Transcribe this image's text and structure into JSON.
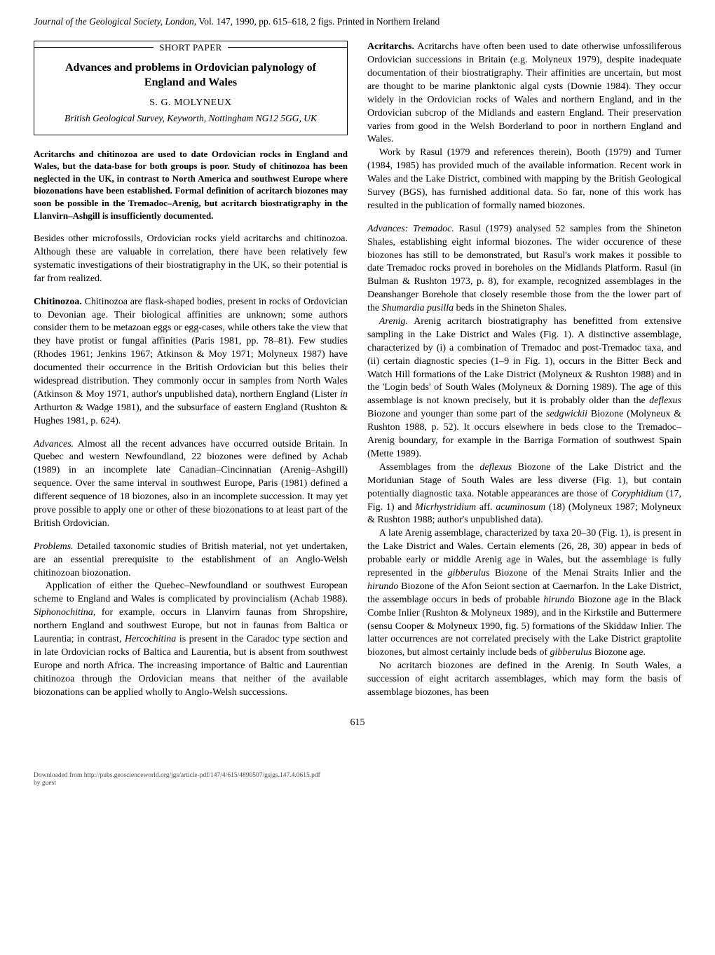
{
  "header": {
    "journal_italic_prefix": "Journal of the Geological Society, London,",
    "rest": " Vol. 147, 1990, pp. 615–618, 2 figs. Printed in Northern Ireland"
  },
  "title_box": {
    "short_paper": "SHORT PAPER",
    "title": "Advances and problems in Ordovician palynology of England and Wales",
    "author": "S. G. MOLYNEUX",
    "affiliation": "British Geological Survey, Keyworth, Nottingham NG12 5GG, UK"
  },
  "abstract": "Acritarchs and chitinozoa are used to date Ordovician rocks in England and Wales, but the data-base for both groups is poor. Study of chitinozoa has been neglected in the UK, in contrast to North America and southwest Europe where biozonations have been established. Formal definition of acritarch biozones may soon be possible in the Tremadoc–Arenig, but acritarch biostratigraphy in the Llanvirn–Ashgill is insufficiently documented.",
  "left": [
    {
      "type": "p",
      "text": "Besides other microfossils, Ordovician rocks yield acritarchs and chitinozoa. Although these are valuable in correlation, there have been relatively few systematic investigations of their biostratigraphy in the UK, so their potential is far from realized."
    },
    {
      "type": "runin",
      "label": "Chitinozoa.",
      "style": "bold",
      "text": " Chitinozoa are flask-shaped bodies, present in rocks of Ordovician to Devonian age. Their biological affinities are unknown; some authors consider them to be metazoan eggs or egg-cases, while others take the view that they have protist or fungal affinities (Paris 1981, pp. 78–81). Few studies (Rhodes 1961; Jenkins 1967; Atkinson & Moy 1971; Molyneux 1987) have documented their occurrence in the British Ordovician but this belies their widespread distribution. They commonly occur in samples from North Wales (Atkinson & Moy 1971, author's unpublished data), northern England (Lister <i>in</i> Arthurton & Wadge 1981), and the subsurface of eastern England (Rushton & Hughes 1981, p. 624)."
    },
    {
      "type": "runin",
      "label": "Advances.",
      "style": "italic",
      "text": " Almost all the recent advances have occurred outside Britain. In Quebec and western Newfoundland, 22 biozones were defined by Achab (1989) in an incomplete late Canadian–Cincinnatian (Arenig–Ashgill) sequence. Over the same interval in southwest Europe, Paris (1981) defined a different sequence of 18 biozones, also in an incomplete succession. It may yet prove possible to apply one or other of these biozonations to at least part of the British Ordovician."
    },
    {
      "type": "runin",
      "label": "Problems.",
      "style": "italic",
      "text": " Detailed taxonomic studies of British material, not yet undertaken, are an essential prerequisite to the establishment of an Anglo-Welsh chitinozoan biozonation.",
      "noskip": true
    },
    {
      "type": "indent",
      "text": "Application of either the Quebec–Newfoundland or southwest European scheme to England and Wales is complicated by provincialism (Achab 1988). <i>Siphonochitina,</i> for example, occurs in Llanvirn faunas from Shropshire, northern England and southwest Europe, but not in faunas from Baltica or Laurentia; in contrast, <i>Hercochitina</i> is present in the Caradoc type section and in late Ordovician rocks of Baltica and Laurentia, but is absent from southwest Europe and north Africa. The increasing importance of Baltic and Laurentian chitinozoa through the Ordovician means that neither of the available biozonations can be applied wholly to Anglo-Welsh successions."
    }
  ],
  "right": [
    {
      "type": "runin",
      "label": "Acritarchs.",
      "style": "bold",
      "text": " Acritarchs have often been used to date otherwise unfossiliferous Ordovician successions in Britain (e.g. Molyneux 1979), despite inadequate documentation of their biostratigraphy. Their affinities are uncertain, but most are thought to be marine planktonic algal cysts (Downie 1984). They occur widely in the Ordovician rocks of Wales and northern England, and in the Ordovician subcrop of the Midlands and eastern England. Their preservation varies from good in the Welsh Borderland to poor in northern England and Wales.",
      "noskip": true
    },
    {
      "type": "indent",
      "text": "Work by Rasul (1979 and references therein), Booth (1979) and Turner (1984, 1985) has provided much of the available information. Recent work in Wales and the Lake District, combined with mapping by the British Geological Survey (BGS), has furnished additional data. So far, none of this work has resulted in the publication of formally named biozones."
    },
    {
      "type": "runin",
      "label": "Advances: Tremadoc.",
      "style": "italic",
      "gap": true,
      "text": " Rasul (1979) analysed 52 samples from the Shineton Shales, establishing eight informal biozones. The wider occurence of these biozones has still to be demonstrated, but Rasul's work makes it possible to date Tremadoc rocks proved in boreholes on the Midlands Platform. Rasul (in Bulman & Rushton 1973, p. 8), for example, recognized assemblages in the Deanshanger Borehole that closely resemble those from the the lower part of the <i>Shumardia pusilla</i> beds in the Shineton Shales.",
      "noskip": true
    },
    {
      "type": "indent",
      "text": "<i>Arenig.</i> Arenig acritarch biostratigraphy has benefitted from extensive sampling in the Lake District and Wales (Fig. 1). A distinctive assemblage, characterized by (i) a combination of Tremadoc and post-Tremadoc taxa, and (ii) certain diagnostic species (1–9 in Fig. 1), occurs in the Bitter Beck and Watch Hill formations of the Lake District (Molyneux & Rushton 1988) and in the 'Login beds' of South Wales (Molyneux & Dorning 1989). The age of this assemblage is not known precisely, but it is probably older than the <i>deflexus</i> Biozone and younger than some part of the <i>sedgwickii</i> Biozone (Molyneux & Rushton 1988, p. 52). It occurs elsewhere in beds close to the Tremadoc–Arenig boundary, for example in the Barriga Formation of southwest Spain (Mette 1989)."
    },
    {
      "type": "indent",
      "text": "Assemblages from the <i>deflexus</i> Biozone of the Lake District and the Moridunian Stage of South Wales are less diverse (Fig. 1), but contain potentially diagnostic taxa. Notable appearances are those of <i>Coryphidium</i> (17, Fig. 1) and <i>Micrhystridium</i> aff. <i>acuminosum</i> (18) (Molyneux 1987; Molyneux & Rushton 1988; author's unpublished data)."
    },
    {
      "type": "indent",
      "text": "A late Arenig assemblage, characterized by taxa 20–30 (Fig. 1), is present in the Lake District and Wales. Certain elements (26, 28, 30) appear in beds of probable early or middle Arenig age in Wales, but the assemblage is fully represented in the <i>gibberulus</i> Biozone of the Menai Straits Inlier and the <i>hirundo</i> Biozone of the Afon Seiont section at Caernarfon. In the Lake District, the assemblage occurs in beds of probable <i>hirundo</i> Biozone age in the Black Combe Inlier (Rushton & Molyneux 1989), and in the Kirkstile and Buttermere (sensu Cooper & Molyneux 1990, fig. 5) formations of the Skiddaw Inlier. The latter occurrences are not correlated precisely with the Lake District graptolite biozones, but almost certainly include beds of <i>gibberulus</i> Biozone age."
    },
    {
      "type": "indent",
      "text": "No acritarch biozones are defined in the Arenig. In South Wales, a succession of eight acritarch assemblages, which may form the basis of assemblage biozones, has been"
    }
  ],
  "page_number": "615",
  "footer": {
    "line1": "Downloaded from http://pubs.geoscienceworld.org/jgs/article-pdf/147/4/615/4890507/gsjgs.147.4.0615.pdf",
    "line2": "by guest"
  }
}
